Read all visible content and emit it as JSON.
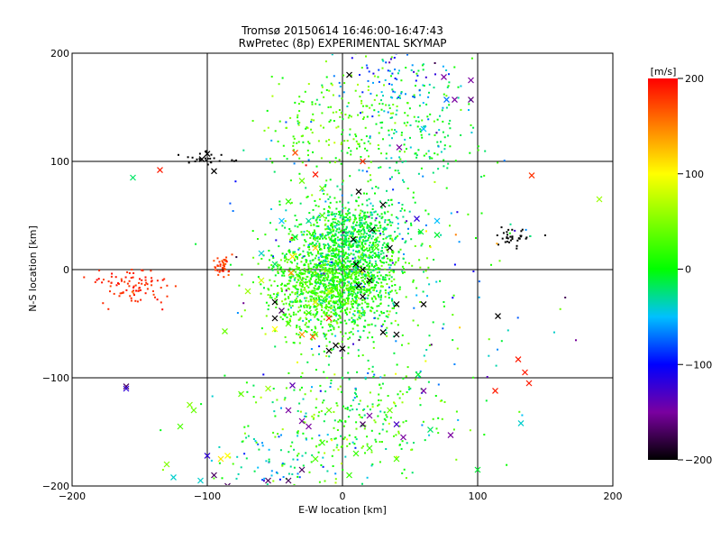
{
  "chart_data": {
    "type": "scatter",
    "title": "Tromsø 20150614 16:46:00-16:47:43",
    "subtitle": "RwPretec (8p) EXPERIMENTAL SKYMAP",
    "xlabel": "E-W location [km]",
    "ylabel": "N-S location [km]",
    "xlim": [
      -200,
      200
    ],
    "ylim": [
      -200,
      200
    ],
    "xticks": [
      -200,
      -100,
      0,
      100,
      200
    ],
    "yticks": [
      -200,
      -100,
      0,
      100,
      200
    ],
    "grid": true,
    "colorbar": {
      "label": "[m/s]",
      "min": -200,
      "max": 200,
      "ticks": [
        200,
        100,
        0,
        -100,
        -200
      ],
      "colormap": "rainbow (black-purple-blue-cyan-green-yellow-red)"
    },
    "marker_types": [
      "dot",
      "x"
    ],
    "clusters": [
      {
        "x": 0,
        "y": 0,
        "sx": 22,
        "sy": 28,
        "n": 1400,
        "v": 5,
        "vs": 25
      },
      {
        "x": -15,
        "y": -20,
        "sx": 20,
        "sy": 20,
        "n": 500,
        "v": 25,
        "vs": 15
      },
      {
        "x": 10,
        "y": 35,
        "sx": 18,
        "sy": 15,
        "n": 300,
        "v": -15,
        "vs": 15
      },
      {
        "x": 45,
        "y": 130,
        "sx": 25,
        "sy": 30,
        "n": 220,
        "v": -10,
        "vs": 25
      },
      {
        "x": 40,
        "y": 180,
        "sx": 20,
        "sy": 15,
        "n": 60,
        "v": -70,
        "vs": 30
      },
      {
        "x": 10,
        "y": 150,
        "sx": 15,
        "sy": 25,
        "n": 80,
        "v": 40,
        "vs": 15
      },
      {
        "x": -30,
        "y": 130,
        "sx": 15,
        "sy": 25,
        "n": 70,
        "v": 25,
        "vs": 20
      },
      {
        "x": 0,
        "y": -140,
        "sx": 40,
        "sy": 30,
        "n": 300,
        "v": 10,
        "vs": 30
      },
      {
        "x": -50,
        "y": -180,
        "sx": 25,
        "sy": 15,
        "n": 60,
        "v": -40,
        "vs": 40
      },
      {
        "x": -155,
        "y": -15,
        "sx": 12,
        "sy": 9,
        "n": 90,
        "v": 185,
        "vs": 8
      },
      {
        "x": -88,
        "y": 3,
        "sx": 4,
        "sy": 4,
        "n": 40,
        "v": 175,
        "vs": 10
      },
      {
        "x": -100,
        "y": 102,
        "sx": 12,
        "sy": 3,
        "n": 25,
        "v": -200,
        "vs": 0
      },
      {
        "x": 125,
        "y": 30,
        "sx": 7,
        "sy": 5,
        "n": 35,
        "v": -200,
        "vs": 0
      },
      {
        "x": 30,
        "y": 0,
        "sx": 60,
        "sy": 80,
        "n": 250,
        "v": -30,
        "vs": 70
      }
    ],
    "crosses": [
      [
        -155,
        85,
        -20
      ],
      [
        -135,
        92,
        190
      ],
      [
        -95,
        91,
        -200
      ],
      [
        -104,
        102,
        -200
      ],
      [
        -100,
        107,
        -200
      ],
      [
        5,
        180,
        -200
      ],
      [
        75,
        178,
        -150
      ],
      [
        77,
        157,
        -70
      ],
      [
        95,
        175,
        -150
      ],
      [
        95,
        157,
        -160
      ],
      [
        83,
        157,
        -150
      ],
      [
        42,
        113,
        -150
      ],
      [
        140,
        87,
        180
      ],
      [
        -100,
        -172,
        -120
      ],
      [
        -90,
        -175,
        110
      ],
      [
        -85,
        -172,
        100
      ],
      [
        -113,
        -125,
        50
      ],
      [
        -110,
        -130,
        40
      ],
      [
        -120,
        -145,
        30
      ],
      [
        -130,
        -180,
        50
      ],
      [
        -160,
        -108,
        -170
      ],
      [
        -160,
        -110,
        -120
      ],
      [
        113,
        -112,
        190
      ],
      [
        130,
        -83,
        190
      ],
      [
        135,
        -95,
        190
      ],
      [
        138,
        -105,
        190
      ],
      [
        115,
        -43,
        -200
      ],
      [
        132,
        -142,
        -40
      ],
      [
        56,
        -97,
        -10
      ],
      [
        -87,
        -57,
        40
      ],
      [
        -5,
        -70,
        -200
      ],
      [
        0,
        -73,
        -200
      ],
      [
        -10,
        -75,
        -200
      ],
      [
        30,
        -58,
        -200
      ],
      [
        40,
        -60,
        -200
      ],
      [
        60,
        -32,
        -200
      ],
      [
        40,
        -32,
        -200
      ],
      [
        15,
        -25,
        -200
      ],
      [
        12,
        -15,
        -200
      ],
      [
        15,
        0,
        -200
      ],
      [
        20,
        -10,
        -200
      ],
      [
        10,
        5,
        -200
      ],
      [
        35,
        20,
        -200
      ],
      [
        -45,
        -38,
        -170
      ],
      [
        -50,
        -30,
        -200
      ],
      [
        -50,
        -45,
        -200
      ],
      [
        -30,
        -185,
        -170
      ],
      [
        -40,
        -195,
        -170
      ],
      [
        -55,
        -195,
        -170
      ],
      [
        -95,
        -190,
        -170
      ],
      [
        -105,
        -195,
        -40
      ],
      [
        -10,
        -45,
        190
      ],
      [
        -30,
        82,
        40
      ],
      [
        -20,
        88,
        190
      ],
      [
        15,
        100,
        180
      ],
      [
        55,
        47,
        -120
      ],
      [
        60,
        -112,
        -150
      ],
      [
        -20,
        -30,
        175
      ],
      [
        -40,
        -130,
        -150
      ],
      [
        -37,
        -107,
        -140
      ],
      [
        -25,
        -145,
        -150
      ],
      [
        -30,
        -140,
        -150
      ],
      [
        15,
        -143,
        -170
      ],
      [
        20,
        -135,
        -150
      ],
      [
        40,
        -143,
        -130
      ],
      [
        45,
        -155,
        -150
      ],
      [
        80,
        -153,
        -150
      ],
      [
        -85,
        -200,
        -170
      ],
      [
        -125,
        -192,
        -40
      ],
      [
        -55,
        -110,
        60
      ],
      [
        -75,
        -115,
        40
      ],
      [
        70,
        45,
        -50
      ],
      [
        -20,
        20,
        120
      ],
      [
        -38,
        -3,
        140
      ],
      [
        -50,
        -55,
        100
      ],
      [
        12,
        72,
        -200
      ],
      [
        8,
        28,
        -200
      ],
      [
        22,
        37,
        -200
      ],
      [
        30,
        60,
        -200
      ],
      [
        10,
        -170,
        20
      ],
      [
        20,
        -165,
        20
      ],
      [
        35,
        -130,
        40
      ],
      [
        40,
        -175,
        30
      ],
      [
        -10,
        -130,
        40
      ],
      [
        -15,
        -160,
        20
      ],
      [
        -20,
        -175,
        30
      ],
      [
        5,
        -190,
        20
      ],
      [
        65,
        -148,
        -20
      ],
      [
        100,
        -185,
        -10
      ],
      [
        190,
        65,
        60
      ],
      [
        58,
        35,
        -10
      ],
      [
        70,
        32,
        -10
      ],
      [
        -25,
        -40,
        20
      ],
      [
        -30,
        -10,
        40
      ],
      [
        -50,
        5,
        -20
      ],
      [
        -60,
        15,
        -40
      ],
      [
        -35,
        30,
        -10
      ],
      [
        -15,
        50,
        30
      ],
      [
        -40,
        63,
        20
      ],
      [
        60,
        130,
        -50
      ],
      [
        -35,
        108,
        170
      ],
      [
        -15,
        75,
        40
      ],
      [
        -37,
        12,
        110
      ],
      [
        -25,
        45,
        -30
      ],
      [
        -45,
        45,
        -50
      ],
      [
        -60,
        -10,
        80
      ],
      [
        -40,
        -50,
        30
      ],
      [
        -70,
        -20,
        60
      ],
      [
        -20,
        -60,
        60
      ],
      [
        -20,
        -30,
        90
      ],
      [
        -10,
        -20,
        90
      ],
      [
        -30,
        -60,
        140
      ],
      [
        -22,
        -62,
        160
      ],
      [
        25,
        20,
        20
      ],
      [
        20,
        40,
        -10
      ]
    ]
  }
}
